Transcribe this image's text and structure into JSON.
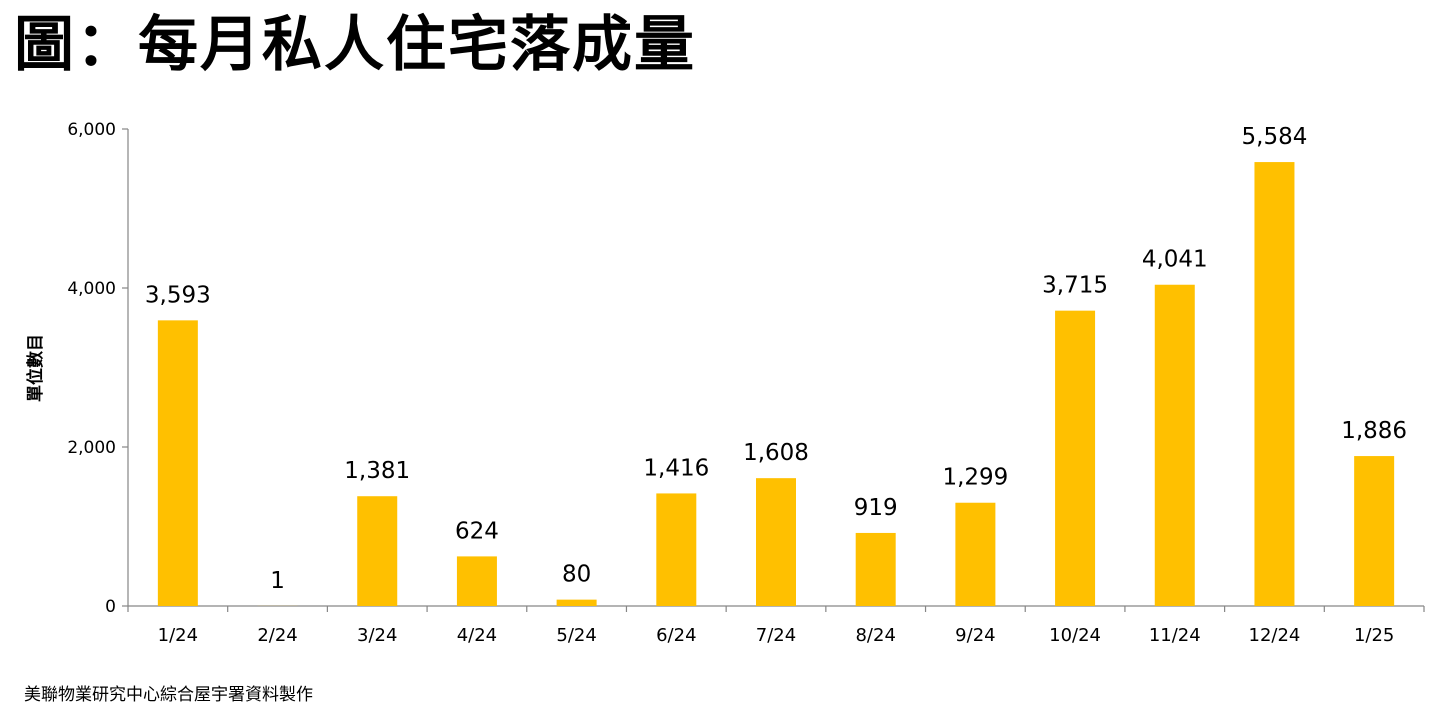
{
  "title": "圖：每月私人住宅落成量",
  "footer": "美聯物業研究中心綜合屋宇署資料製作",
  "chart_data": {
    "type": "bar",
    "title": "",
    "xlabel": "",
    "ylabel": "單位數目",
    "categories": [
      "1/24",
      "2/24",
      "3/24",
      "4/24",
      "5/24",
      "6/24",
      "7/24",
      "8/24",
      "9/24",
      "10/24",
      "11/24",
      "12/24",
      "1/25"
    ],
    "values": [
      3593,
      1,
      1381,
      624,
      80,
      1416,
      1608,
      919,
      1299,
      3715,
      4041,
      5584,
      1886
    ],
    "value_labels": [
      "3,593",
      "1",
      "1,381",
      "624",
      "80",
      "1,416",
      "1,608",
      "919",
      "1,299",
      "3,715",
      "4,041",
      "5,584",
      "1,886"
    ],
    "ylim": [
      0,
      6000
    ],
    "yticks": [
      0,
      2000,
      4000,
      6000
    ],
    "ytick_labels": [
      "0",
      "2,000",
      "4,000",
      "6,000"
    ],
    "bar_color": "#FFC000",
    "grid": false,
    "legend": "none"
  }
}
